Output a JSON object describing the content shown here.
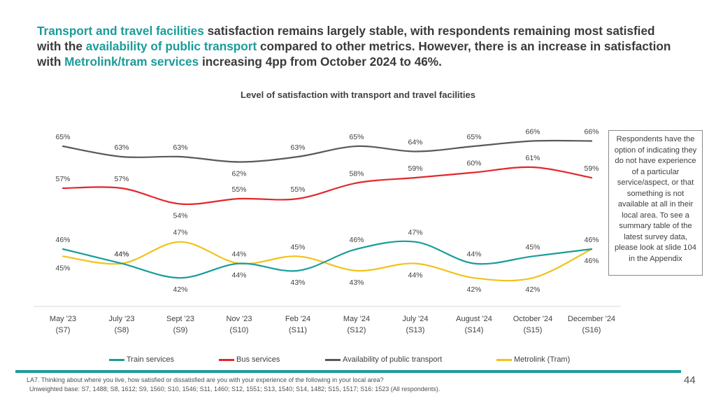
{
  "headline": {
    "p1": "Transport and travel facilities",
    "p2": " satisfaction remains largely stable, with respondents remaining most satisfied with the ",
    "p3": "availability of public transport",
    "p4": " compared to other metrics. However, there is an increase in satisfaction with ",
    "p5": "Metrolink/tram services",
    "p6": " increasing 4pp from October 2024 to 46%."
  },
  "colors": {
    "accent": "#1a9c9a",
    "train": "#1a9c9a",
    "bus": "#e3262b",
    "availability": "#595959",
    "metrolink": "#f2c21b"
  },
  "chart_data": {
    "type": "line",
    "title": "Level of satisfaction with transport and travel facilities",
    "categories": [
      {
        "name": "May '23",
        "code": "(S7)"
      },
      {
        "name": "July '23",
        "code": "(S8)"
      },
      {
        "name": "Sept '23",
        "code": "(S9)"
      },
      {
        "name": "Nov '23",
        "code": "(S10)"
      },
      {
        "name": "Feb '24",
        "code": "(S11)"
      },
      {
        "name": "May '24",
        "code": "(S12)"
      },
      {
        "name": "July '24",
        "code": "(S13)"
      },
      {
        "name": "August '24",
        "code": "(S14)"
      },
      {
        "name": "October '24",
        "code": "(S15)"
      },
      {
        "name": "December '24",
        "code": "(S16)"
      }
    ],
    "series": [
      {
        "key": "train",
        "name": "Train services",
        "values": [
          46,
          44,
          42,
          44,
          43,
          46,
          47,
          44,
          45,
          46
        ]
      },
      {
        "key": "bus",
        "name": "Bus services",
        "values": [
          57,
          57,
          54,
          55,
          55,
          58,
          59,
          60,
          61,
          59
        ]
      },
      {
        "key": "availability",
        "name": "Availability of public transport",
        "values": [
          65,
          63,
          63,
          62,
          63,
          65,
          64,
          65,
          66,
          66
        ]
      },
      {
        "key": "metrolink",
        "name": "Metrolink (Tram)",
        "values": [
          45,
          44,
          47,
          44,
          45,
          43,
          44,
          42,
          42,
          46
        ]
      }
    ],
    "unit": "%"
  },
  "side_note": "Respondents have the option of indicating they do not have experience of a particular service/aspect, or that something is not available at all in their local area. To see a summary table of the latest survey data, please look at slide 104 in the Appendix",
  "footnote": {
    "line1": "LA7. Thinking about where you live, how satisfied or dissatisfied are you with your experience of the following in your local area?",
    "line2": "Unweighted base: S7, 1488; S8, 1612; S9, 1560; S10, 1546; S11, 1460; S12, 1551; S13, 1540; S14, 1482; S15, 1517; S16: 1523 (All respondents)."
  },
  "page_number": "44"
}
